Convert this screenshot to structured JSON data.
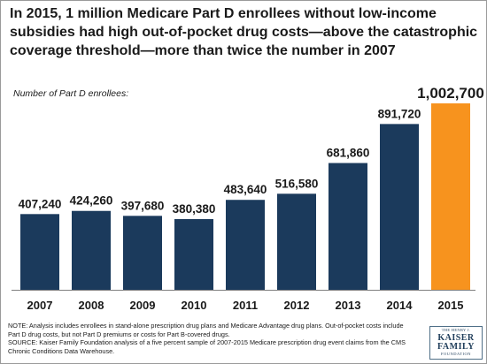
{
  "chart_data": {
    "type": "bar",
    "title": "In 2015, 1 million Medicare Part D enrollees without low-income subsidies had high out-of-pocket drug costs—above the catastrophic coverage threshold—more than twice the number in 2007",
    "ylabel": "Number of Part D enrollees:",
    "xlabel": "",
    "categories": [
      "2007",
      "2008",
      "2009",
      "2010",
      "2011",
      "2012",
      "2013",
      "2014",
      "2015"
    ],
    "values": [
      407240,
      424260,
      397680,
      380380,
      483640,
      516580,
      681860,
      891720,
      1002700
    ],
    "value_labels": [
      "407,240",
      "424,260",
      "397,680",
      "380,380",
      "483,640",
      "516,580",
      "681,860",
      "891,720",
      "1,002,700"
    ],
    "ylim": [
      0,
      1002700
    ],
    "grid": false,
    "legend": "none",
    "colors": {
      "default_bar": "#1b3a5c",
      "highlight_bar": "#f7931e",
      "highlight_index": 8
    }
  },
  "notes": {
    "note": "NOTE: Analysis includes enrollees in stand-alone prescription drug plans and Medicare Advantage drug plans. Out-of-pocket costs include Part D drug costs, but not Part D premiums or costs for Part B-covered drugs.",
    "source": "SOURCE: Kaiser Family Foundation analysis of a five percent sample of 2007-2015 Medicare prescription drug event claims from the CMS Chronic Conditions Data Warehouse."
  },
  "logo": {
    "line1": "THE HENRY J.",
    "line2": "KAISER",
    "line3": "FAMILY",
    "line4": "FOUNDATION"
  }
}
